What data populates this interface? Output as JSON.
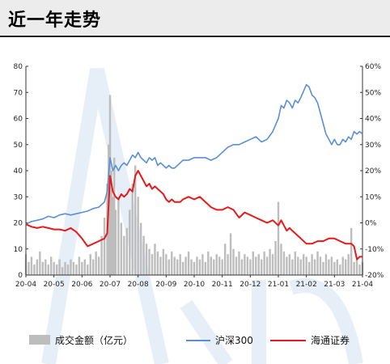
{
  "header": {
    "title": "近一年走势"
  },
  "colors": {
    "volume": "#bdbdbd",
    "hs300": "#5b8fd4",
    "haitong": "#e41a1c",
    "watermark": "#e6eef8"
  },
  "chart_data": {
    "type": "line",
    "x_tick_labels": [
      "20-04",
      "20-05",
      "20-06",
      "20-07",
      "20-08",
      "20-09",
      "20-10",
      "20-11",
      "20-12",
      "21-01",
      "21-02",
      "21-03",
      "21-04"
    ],
    "y_left": {
      "ticks": [
        "0",
        "10",
        "20",
        "30",
        "40",
        "50",
        "60",
        "70",
        "80"
      ],
      "range": [
        0,
        80
      ]
    },
    "y_right": {
      "ticks": [
        "-20%",
        "-10%",
        "0%",
        "10%",
        "20%",
        "30%",
        "40%",
        "50%",
        "60%"
      ],
      "range": [
        -20,
        60
      ]
    },
    "legend": {
      "items": [
        "成交金额（亿元）",
        "沪深300",
        "海通证券"
      ],
      "position": "bottom"
    },
    "series": [
      {
        "name": "成交金额（亿元）",
        "type": "bar",
        "axis": "left",
        "points": [
          [
            0,
            8
          ],
          [
            0.1,
            5
          ],
          [
            0.2,
            7
          ],
          [
            0.3,
            4
          ],
          [
            0.4,
            6
          ],
          [
            0.5,
            9
          ],
          [
            0.6,
            5
          ],
          [
            0.7,
            6
          ],
          [
            0.8,
            4
          ],
          [
            0.9,
            7
          ],
          [
            1.0,
            5
          ],
          [
            1.1,
            4
          ],
          [
            1.2,
            6
          ],
          [
            1.3,
            3
          ],
          [
            1.4,
            5
          ],
          [
            1.5,
            4
          ],
          [
            1.6,
            6
          ],
          [
            1.7,
            5
          ],
          [
            1.8,
            4
          ],
          [
            1.9,
            7
          ],
          [
            2.0,
            5
          ],
          [
            2.1,
            6
          ],
          [
            2.2,
            4
          ],
          [
            2.3,
            8
          ],
          [
            2.4,
            6
          ],
          [
            2.5,
            9
          ],
          [
            2.6,
            7
          ],
          [
            2.7,
            15
          ],
          [
            2.8,
            22
          ],
          [
            2.9,
            35
          ],
          [
            2.95,
            50
          ],
          [
            3.0,
            69
          ],
          [
            3.05,
            40
          ],
          [
            3.1,
            30
          ],
          [
            3.15,
            45
          ],
          [
            3.2,
            25
          ],
          [
            3.3,
            30
          ],
          [
            3.4,
            20
          ],
          [
            3.5,
            15
          ],
          [
            3.6,
            18
          ],
          [
            3.7,
            25
          ],
          [
            3.8,
            35
          ],
          [
            3.9,
            42
          ],
          [
            4.0,
            30
          ],
          [
            4.1,
            20
          ],
          [
            4.2,
            15
          ],
          [
            4.3,
            12
          ],
          [
            4.4,
            10
          ],
          [
            4.5,
            8
          ],
          [
            4.6,
            12
          ],
          [
            4.7,
            9
          ],
          [
            4.8,
            7
          ],
          [
            4.9,
            10
          ],
          [
            5.0,
            8
          ],
          [
            5.1,
            6
          ],
          [
            5.2,
            9
          ],
          [
            5.3,
            7
          ],
          [
            5.4,
            6
          ],
          [
            5.5,
            8
          ],
          [
            5.6,
            5
          ],
          [
            5.7,
            7
          ],
          [
            5.8,
            9
          ],
          [
            5.9,
            6
          ],
          [
            6.0,
            5
          ],
          [
            6.1,
            7
          ],
          [
            6.2,
            6
          ],
          [
            6.3,
            8
          ],
          [
            6.4,
            5
          ],
          [
            6.5,
            9
          ],
          [
            6.6,
            7
          ],
          [
            6.7,
            6
          ],
          [
            6.8,
            8
          ],
          [
            6.9,
            7
          ],
          [
            7.0,
            6
          ],
          [
            7.1,
            12
          ],
          [
            7.2,
            8
          ],
          [
            7.3,
            16
          ],
          [
            7.4,
            10
          ],
          [
            7.5,
            7
          ],
          [
            7.6,
            9
          ],
          [
            7.7,
            6
          ],
          [
            7.8,
            8
          ],
          [
            7.9,
            7
          ],
          [
            8.0,
            6
          ],
          [
            8.1,
            9
          ],
          [
            8.2,
            7
          ],
          [
            8.3,
            8
          ],
          [
            8.4,
            6
          ],
          [
            8.5,
            9
          ],
          [
            8.6,
            7
          ],
          [
            8.7,
            10
          ],
          [
            8.8,
            8
          ],
          [
            8.9,
            13
          ],
          [
            9.0,
            28
          ],
          [
            9.1,
            12
          ],
          [
            9.2,
            9
          ],
          [
            9.3,
            7
          ],
          [
            9.4,
            8
          ],
          [
            9.5,
            6
          ],
          [
            9.6,
            9
          ],
          [
            9.7,
            7
          ],
          [
            9.8,
            6
          ],
          [
            9.9,
            8
          ],
          [
            10.0,
            7
          ],
          [
            10.1,
            5
          ],
          [
            10.2,
            8
          ],
          [
            10.3,
            6
          ],
          [
            10.4,
            9
          ],
          [
            10.5,
            7
          ],
          [
            10.6,
            5
          ],
          [
            10.7,
            8
          ],
          [
            10.8,
            6
          ],
          [
            10.9,
            7
          ],
          [
            11.0,
            5
          ],
          [
            11.1,
            6
          ],
          [
            11.2,
            4
          ],
          [
            11.3,
            7
          ],
          [
            11.4,
            6
          ],
          [
            11.5,
            8
          ],
          [
            11.6,
            18
          ],
          [
            11.7,
            5
          ],
          [
            11.8,
            6
          ],
          [
            11.9,
            4
          ],
          [
            12.0,
            5
          ]
        ]
      },
      {
        "name": "沪深300",
        "type": "line",
        "axis": "right",
        "points": [
          [
            0,
            -0.5
          ],
          [
            0.2,
            0.5
          ],
          [
            0.4,
            1
          ],
          [
            0.6,
            1.5
          ],
          [
            0.8,
            2.5
          ],
          [
            1.0,
            2
          ],
          [
            1.2,
            3
          ],
          [
            1.4,
            3.5
          ],
          [
            1.6,
            3
          ],
          [
            1.8,
            3.5
          ],
          [
            2.0,
            4
          ],
          [
            2.2,
            4.5
          ],
          [
            2.4,
            5.5
          ],
          [
            2.6,
            6
          ],
          [
            2.8,
            8
          ],
          [
            2.9,
            12
          ],
          [
            3.0,
            25
          ],
          [
            3.1,
            20
          ],
          [
            3.2,
            22
          ],
          [
            3.3,
            20
          ],
          [
            3.4,
            22
          ],
          [
            3.5,
            23
          ],
          [
            3.6,
            22
          ],
          [
            3.7,
            24
          ],
          [
            3.8,
            26
          ],
          [
            3.9,
            25
          ],
          [
            4.0,
            27
          ],
          [
            4.1,
            25
          ],
          [
            4.2,
            24
          ],
          [
            4.3,
            23
          ],
          [
            4.4,
            25
          ],
          [
            4.5,
            24
          ],
          [
            4.6,
            25
          ],
          [
            4.7,
            22
          ],
          [
            4.8,
            23
          ],
          [
            4.9,
            22
          ],
          [
            5.0,
            21
          ],
          [
            5.1,
            22
          ],
          [
            5.2,
            21
          ],
          [
            5.3,
            21
          ],
          [
            5.4,
            22
          ],
          [
            5.5,
            23
          ],
          [
            5.6,
            24
          ],
          [
            5.8,
            24
          ],
          [
            6.0,
            25
          ],
          [
            6.2,
            25
          ],
          [
            6.4,
            25
          ],
          [
            6.6,
            24
          ],
          [
            6.8,
            25
          ],
          [
            7.0,
            27
          ],
          [
            7.2,
            29
          ],
          [
            7.4,
            30
          ],
          [
            7.6,
            30
          ],
          [
            7.8,
            31
          ],
          [
            8.0,
            32
          ],
          [
            8.2,
            33
          ],
          [
            8.4,
            31
          ],
          [
            8.6,
            32
          ],
          [
            8.8,
            35
          ],
          [
            9.0,
            40
          ],
          [
            9.1,
            45
          ],
          [
            9.2,
            44
          ],
          [
            9.3,
            47
          ],
          [
            9.4,
            46
          ],
          [
            9.5,
            44
          ],
          [
            9.6,
            47
          ],
          [
            9.7,
            46
          ],
          [
            9.8,
            48
          ],
          [
            10.0,
            53
          ],
          [
            10.1,
            52
          ],
          [
            10.2,
            49
          ],
          [
            10.3,
            48
          ],
          [
            10.4,
            46
          ],
          [
            10.5,
            42
          ],
          [
            10.6,
            38
          ],
          [
            10.7,
            34
          ],
          [
            10.8,
            32
          ],
          [
            10.9,
            30
          ],
          [
            11.0,
            32
          ],
          [
            11.1,
            30
          ],
          [
            11.2,
            30
          ],
          [
            11.3,
            32
          ],
          [
            11.4,
            31
          ],
          [
            11.5,
            33
          ],
          [
            11.6,
            32
          ],
          [
            11.7,
            35
          ],
          [
            11.8,
            34
          ],
          [
            11.9,
            35
          ],
          [
            12.0,
            34
          ]
        ]
      },
      {
        "name": "海通证券",
        "type": "line",
        "axis": "right",
        "points": [
          [
            0,
            -0.5
          ],
          [
            0.2,
            -1.5
          ],
          [
            0.4,
            -2
          ],
          [
            0.6,
            -1.5
          ],
          [
            0.8,
            -2
          ],
          [
            1.0,
            -2.5
          ],
          [
            1.2,
            -2.5
          ],
          [
            1.4,
            -3
          ],
          [
            1.6,
            -2
          ],
          [
            1.8,
            -3.5
          ],
          [
            2.0,
            -6
          ],
          [
            2.2,
            -9
          ],
          [
            2.4,
            -8
          ],
          [
            2.6,
            -7
          ],
          [
            2.8,
            -6
          ],
          [
            2.9,
            -4
          ],
          [
            3.0,
            18
          ],
          [
            3.1,
            12
          ],
          [
            3.2,
            10
          ],
          [
            3.3,
            9
          ],
          [
            3.4,
            11
          ],
          [
            3.5,
            10
          ],
          [
            3.6,
            11
          ],
          [
            3.7,
            13
          ],
          [
            3.8,
            12
          ],
          [
            3.9,
            18
          ],
          [
            4.0,
            20
          ],
          [
            4.1,
            18
          ],
          [
            4.2,
            16
          ],
          [
            4.3,
            14
          ],
          [
            4.4,
            15
          ],
          [
            4.5,
            13
          ],
          [
            4.6,
            14
          ],
          [
            4.7,
            13
          ],
          [
            4.8,
            12
          ],
          [
            4.9,
            11
          ],
          [
            5.0,
            9
          ],
          [
            5.1,
            8
          ],
          [
            5.2,
            9
          ],
          [
            5.3,
            8
          ],
          [
            5.4,
            8
          ],
          [
            5.5,
            8
          ],
          [
            5.6,
            9
          ],
          [
            5.8,
            10
          ],
          [
            6.0,
            9
          ],
          [
            6.2,
            10
          ],
          [
            6.4,
            8
          ],
          [
            6.6,
            6
          ],
          [
            6.8,
            5
          ],
          [
            7.0,
            5
          ],
          [
            7.2,
            6
          ],
          [
            7.4,
            5
          ],
          [
            7.6,
            2
          ],
          [
            7.8,
            4
          ],
          [
            8.0,
            3
          ],
          [
            8.2,
            2
          ],
          [
            8.4,
            1
          ],
          [
            8.6,
            0
          ],
          [
            8.8,
            1
          ],
          [
            9.0,
            -1
          ],
          [
            9.1,
            1
          ],
          [
            9.2,
            -1
          ],
          [
            9.3,
            -3
          ],
          [
            9.4,
            -2
          ],
          [
            9.5,
            -3
          ],
          [
            9.6,
            -4
          ],
          [
            9.7,
            -5
          ],
          [
            9.8,
            -6
          ],
          [
            10.0,
            -8
          ],
          [
            10.2,
            -8
          ],
          [
            10.4,
            -7
          ],
          [
            10.6,
            -7
          ],
          [
            10.8,
            -6
          ],
          [
            11.0,
            -6
          ],
          [
            11.2,
            -7
          ],
          [
            11.4,
            -8
          ],
          [
            11.6,
            -8
          ],
          [
            11.7,
            -9
          ],
          [
            11.8,
            -14
          ],
          [
            11.9,
            -13
          ],
          [
            12.0,
            -13
          ]
        ]
      }
    ]
  }
}
